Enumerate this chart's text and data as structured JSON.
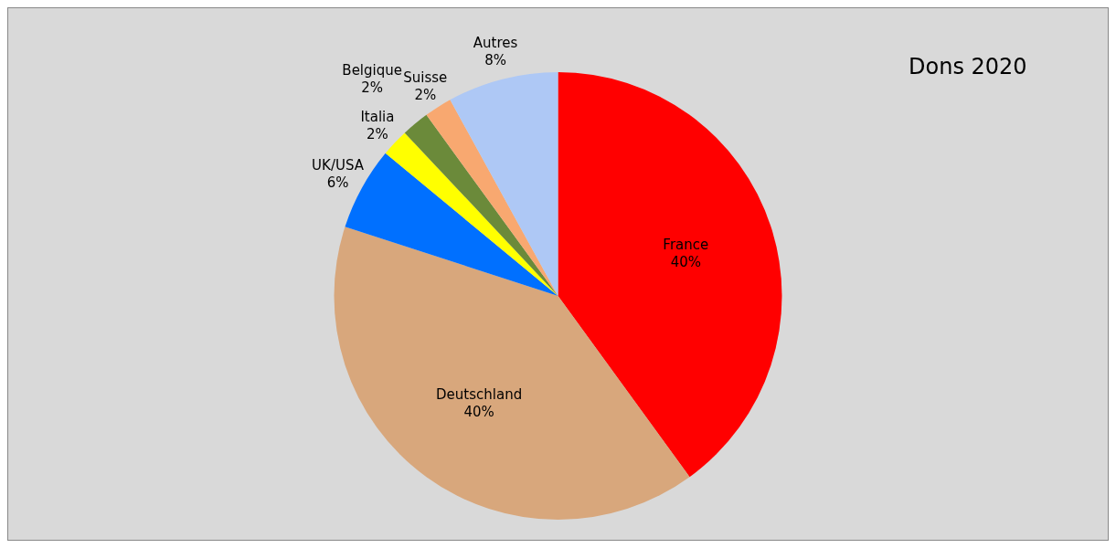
{
  "chart_data": {
    "type": "pie",
    "title": "Dons 2020",
    "categories": [
      "France",
      "Deutschland",
      "UK/USA",
      "Italia",
      "Belgique",
      "Suisse",
      "Autres"
    ],
    "values": [
      40,
      40,
      6,
      2,
      2,
      2,
      8
    ],
    "value_labels": [
      "40%",
      "40%",
      "6%",
      "2%",
      "2%",
      "2%",
      "8%"
    ],
    "colors": [
      "#ff0000",
      "#d8a77c",
      "#0070ff",
      "#ffff00",
      "#6b8a3a",
      "#f8a870",
      "#aec8f5"
    ],
    "legend": false
  }
}
